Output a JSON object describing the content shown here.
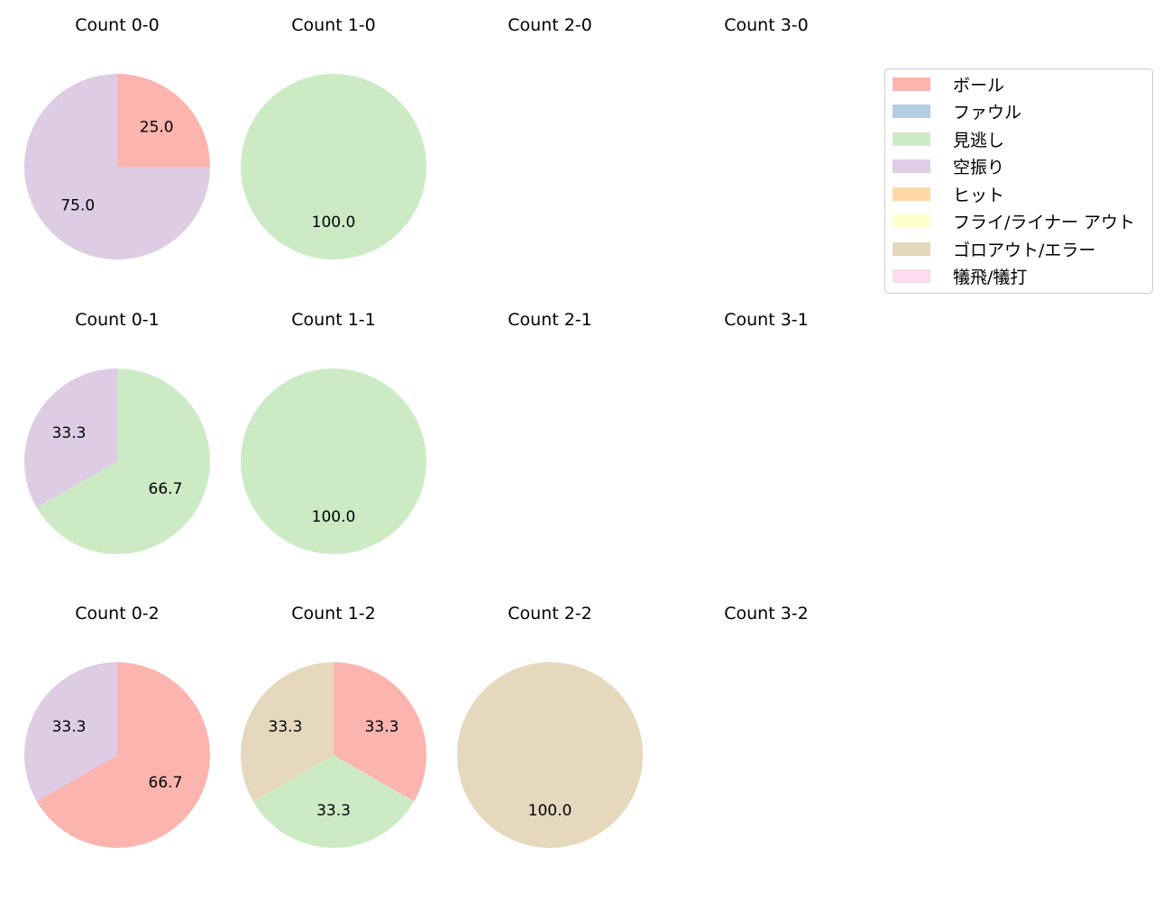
{
  "chart_data": {
    "type": "pie",
    "start_angle": 90,
    "direction": "clockwise",
    "legend": {
      "position": "upper right",
      "entries": [
        {
          "label": "ボール",
          "color": "#fbb4ae"
        },
        {
          "label": "ファウル",
          "color": "#b3cde3"
        },
        {
          "label": "見逃し",
          "color": "#ccebc5"
        },
        {
          "label": "空振り",
          "color": "#decbe4"
        },
        {
          "label": "ヒット",
          "color": "#fed9a6"
        },
        {
          "label": "フライ/ライナー アウト",
          "color": "#ffffcc"
        },
        {
          "label": "ゴロアウト/エラー",
          "color": "#e5d8bd"
        },
        {
          "label": "犠飛/犠打",
          "color": "#fddaec"
        }
      ]
    },
    "subplots": [
      {
        "title": "Count 0-0",
        "row": 0,
        "col": 0,
        "slices": [
          {
            "label": "ボール",
            "value": 25.0
          },
          {
            "label": "空振り",
            "value": 75.0
          }
        ]
      },
      {
        "title": "Count 1-0",
        "row": 0,
        "col": 1,
        "slices": [
          {
            "label": "見逃し",
            "value": 100.0
          }
        ]
      },
      {
        "title": "Count 2-0",
        "row": 0,
        "col": 2,
        "slices": []
      },
      {
        "title": "Count 3-0",
        "row": 0,
        "col": 3,
        "slices": []
      },
      {
        "title": "Count 0-1",
        "row": 1,
        "col": 0,
        "slices": [
          {
            "label": "見逃し",
            "value": 66.7
          },
          {
            "label": "空振り",
            "value": 33.3
          }
        ]
      },
      {
        "title": "Count 1-1",
        "row": 1,
        "col": 1,
        "slices": [
          {
            "label": "見逃し",
            "value": 100.0
          }
        ]
      },
      {
        "title": "Count 2-1",
        "row": 1,
        "col": 2,
        "slices": []
      },
      {
        "title": "Count 3-1",
        "row": 1,
        "col": 3,
        "slices": []
      },
      {
        "title": "Count 0-2",
        "row": 2,
        "col": 0,
        "slices": [
          {
            "label": "ボール",
            "value": 66.7
          },
          {
            "label": "空振り",
            "value": 33.3
          }
        ]
      },
      {
        "title": "Count 1-2",
        "row": 2,
        "col": 1,
        "slices": [
          {
            "label": "ボール",
            "value": 33.3
          },
          {
            "label": "見逃し",
            "value": 33.3
          },
          {
            "label": "ゴロアウト/エラー",
            "value": 33.3
          }
        ]
      },
      {
        "title": "Count 2-2",
        "row": 2,
        "col": 2,
        "slices": [
          {
            "label": "ゴロアウト/エラー",
            "value": 100.0
          }
        ]
      },
      {
        "title": "Count 3-2",
        "row": 2,
        "col": 3,
        "slices": []
      }
    ]
  }
}
